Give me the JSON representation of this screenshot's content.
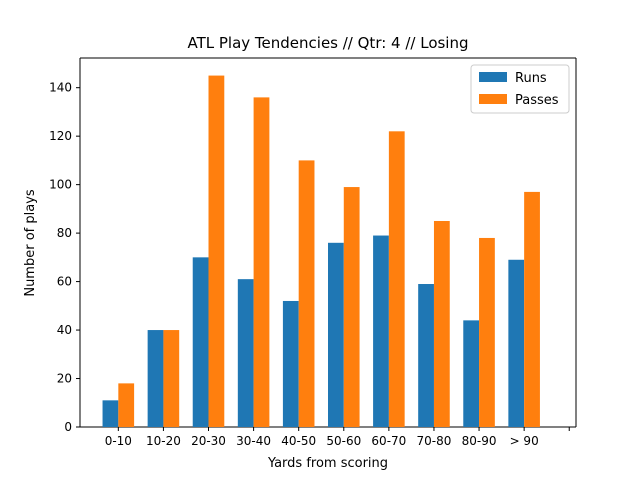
{
  "chart_data": {
    "type": "bar",
    "title": "ATL Play Tendencies // Qtr: 4 // Losing",
    "xlabel": "Yards from scoring",
    "ylabel": "Number of plays",
    "categories": [
      "0-10",
      "10-20",
      "20-30",
      "30-40",
      "40-50",
      "50-60",
      "60-70",
      "70-80",
      "80-90",
      "> 90"
    ],
    "series": [
      {
        "name": "Runs",
        "color": "#1f77b4",
        "values": [
          11,
          40,
          70,
          61,
          52,
          76,
          79,
          59,
          44,
          69
        ]
      },
      {
        "name": "Passes",
        "color": "#ff7f0e",
        "values": [
          18,
          40,
          145,
          136,
          110,
          99,
          122,
          85,
          78,
          97
        ]
      }
    ],
    "ylim": [
      0,
      152.25
    ],
    "yticks": [
      0,
      20,
      40,
      60,
      80,
      100,
      120,
      140
    ],
    "extra_empty_tick": true,
    "grid": false,
    "legend": "top-right"
  }
}
